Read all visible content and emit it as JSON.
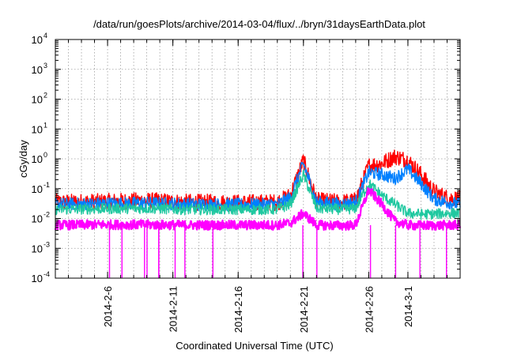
{
  "chart_data": {
    "type": "line",
    "title": "/data/run/goesPlots/archive/2014-03-04/flux/../bryn/31daysEarthData.plot",
    "xlabel": "Coordinated Universal Time (UTC)",
    "ylabel": "cGy/day",
    "y_scale": "log",
    "ylim": [
      0.0001,
      10000
    ],
    "xlim": [
      "2014-02-02",
      "2014-03-05"
    ],
    "y_ticks": [
      {
        "base": "10",
        "exp": "-4",
        "value": 0.0001
      },
      {
        "base": "10",
        "exp": "-3",
        "value": 0.001
      },
      {
        "base": "10",
        "exp": "-2",
        "value": 0.01
      },
      {
        "base": "10",
        "exp": "-1",
        "value": 0.1
      },
      {
        "base": "10",
        "exp": "0",
        "value": 1
      },
      {
        "base": "10",
        "exp": "1",
        "value": 10
      },
      {
        "base": "10",
        "exp": "2",
        "value": 100
      },
      {
        "base": "10",
        "exp": "3",
        "value": 1000
      },
      {
        "base": "10",
        "exp": "4",
        "value": 10000
      }
    ],
    "x_ticks": [
      {
        "label": "2014-2-6",
        "date": "2014-02-06"
      },
      {
        "label": "2014-2-11",
        "date": "2014-02-11"
      },
      {
        "label": "2014-2-16",
        "date": "2014-02-16"
      },
      {
        "label": "2014-2-21",
        "date": "2014-02-21"
      },
      {
        "label": "2014-2-26",
        "date": "2014-02-26"
      },
      {
        "label": "2014-3-1",
        "date": "2014-03-01"
      }
    ],
    "grid": true,
    "legend": "none",
    "series": [
      {
        "color": "#ff0000",
        "x": [
          "2014-02-02",
          "2014-02-05",
          "2014-02-09",
          "2014-02-12",
          "2014-02-16",
          "2014-02-19",
          "2014-02-20",
          "2014-02-21",
          "2014-02-22",
          "2014-02-24",
          "2014-02-25",
          "2014-02-26",
          "2014-02-27",
          "2014-02-28",
          "2014-03-01",
          "2014-03-02",
          "2014-03-03",
          "2014-03-04",
          "2014-03-05"
        ],
        "y": [
          0.035,
          0.036,
          0.04,
          0.035,
          0.034,
          0.035,
          0.06,
          0.9,
          0.04,
          0.035,
          0.04,
          0.6,
          0.7,
          1.2,
          0.9,
          0.3,
          0.08,
          0.05,
          0.045
        ]
      },
      {
        "color": "#0080ff",
        "x": [
          "2014-02-02",
          "2014-02-05",
          "2014-02-09",
          "2014-02-12",
          "2014-02-16",
          "2014-02-19",
          "2014-02-20",
          "2014-02-21",
          "2014-02-22",
          "2014-02-24",
          "2014-02-25",
          "2014-02-26",
          "2014-02-27",
          "2014-02-28",
          "2014-03-01",
          "2014-03-02",
          "2014-03-03",
          "2014-03-04",
          "2014-03-05"
        ],
        "y": [
          0.03,
          0.031,
          0.033,
          0.03,
          0.029,
          0.03,
          0.05,
          0.7,
          0.035,
          0.03,
          0.035,
          0.35,
          0.3,
          0.22,
          0.45,
          0.15,
          0.045,
          0.035,
          0.03
        ]
      },
      {
        "color": "#20c8a0",
        "x": [
          "2014-02-02",
          "2014-02-05",
          "2014-02-09",
          "2014-02-12",
          "2014-02-16",
          "2014-02-19",
          "2014-02-20",
          "2014-02-21",
          "2014-02-22",
          "2014-02-24",
          "2014-02-25",
          "2014-02-26",
          "2014-02-27",
          "2014-02-28",
          "2014-03-01",
          "2014-03-02",
          "2014-03-03",
          "2014-03-04",
          "2014-03-05"
        ],
        "y": [
          0.02,
          0.021,
          0.022,
          0.02,
          0.02,
          0.02,
          0.03,
          0.3,
          0.022,
          0.02,
          0.022,
          0.15,
          0.06,
          0.03,
          0.015,
          0.014,
          0.014,
          0.015,
          0.015
        ]
      },
      {
        "color": "#ff00ff",
        "x": [
          "2014-02-02",
          "2014-02-05",
          "2014-02-09",
          "2014-02-12",
          "2014-02-16",
          "2014-02-19",
          "2014-02-20",
          "2014-02-21",
          "2014-02-22",
          "2014-02-24",
          "2014-02-25",
          "2014-02-26",
          "2014-02-27",
          "2014-02-28",
          "2014-03-01",
          "2014-03-02",
          "2014-03-03",
          "2014-03-04",
          "2014-03-05"
        ],
        "y": [
          0.006,
          0.0062,
          0.0062,
          0.006,
          0.006,
          0.006,
          0.007,
          0.015,
          0.006,
          0.0058,
          0.006,
          0.09,
          0.03,
          0.008,
          0.006,
          0.0058,
          0.0058,
          0.006,
          0.006
        ],
        "dips_to_floor": [
          "2014-02-06",
          "2014-02-07",
          "2014-02-09",
          "2014-02-09",
          "2014-02-10",
          "2014-02-10",
          "2014-02-11",
          "2014-02-12",
          "2014-02-14",
          "2014-02-21",
          "2014-02-22",
          "2014-02-26",
          "2014-02-28",
          "2014-03-02",
          "2014-03-04"
        ]
      }
    ]
  }
}
